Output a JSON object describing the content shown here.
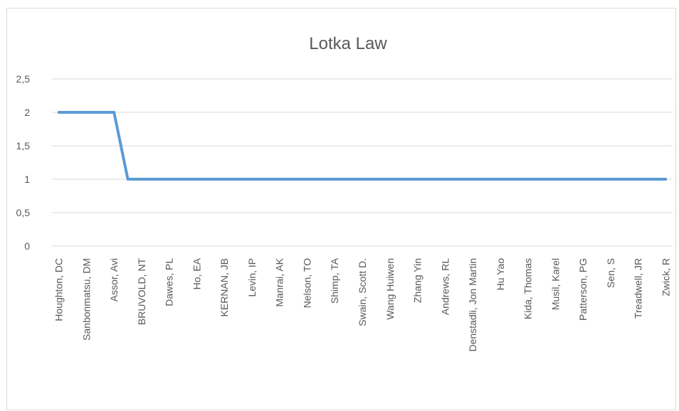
{
  "chart_data": {
    "type": "line",
    "title": "Lotka Law",
    "xlabel": "",
    "ylabel": "",
    "ylim": [
      0,
      2.5
    ],
    "yticks": [
      "0",
      "0,5",
      "1",
      "1,5",
      "2",
      "2,5"
    ],
    "grid": true,
    "legend": "none",
    "series_color": "#5b9bd5",
    "x_label_every": 2,
    "categories": [
      "Houghton, DC",
      "",
      "Sanbonmatsu, DM",
      "",
      "Assor, Avi",
      "",
      "BRUVOLD, NT",
      "",
      "Dawes, PL",
      "",
      "Ho, EA",
      "",
      "KERNAN, JB",
      "",
      "Levin, IP",
      "",
      "Manrai, AK",
      "",
      "Nelson, TO",
      "",
      "Shimp, TA",
      "",
      "Swain, Scott D.",
      "",
      "Wang Huiwen",
      "",
      "Zhang Yin",
      "",
      "Andrews, RL",
      "",
      "Denstadli, Jon Martin",
      "",
      "Hu Yao",
      "",
      "Kida, Thomas",
      "",
      "Musil, Karel",
      "",
      "Patterson, PG",
      "",
      "Sen, S",
      "",
      "Treadwell, JR",
      "",
      "Zwick, R"
    ],
    "values": [
      2,
      2,
      2,
      2,
      2,
      1,
      1,
      1,
      1,
      1,
      1,
      1,
      1,
      1,
      1,
      1,
      1,
      1,
      1,
      1,
      1,
      1,
      1,
      1,
      1,
      1,
      1,
      1,
      1,
      1,
      1,
      1,
      1,
      1,
      1,
      1,
      1,
      1,
      1,
      1,
      1,
      1,
      1,
      1,
      1
    ]
  }
}
